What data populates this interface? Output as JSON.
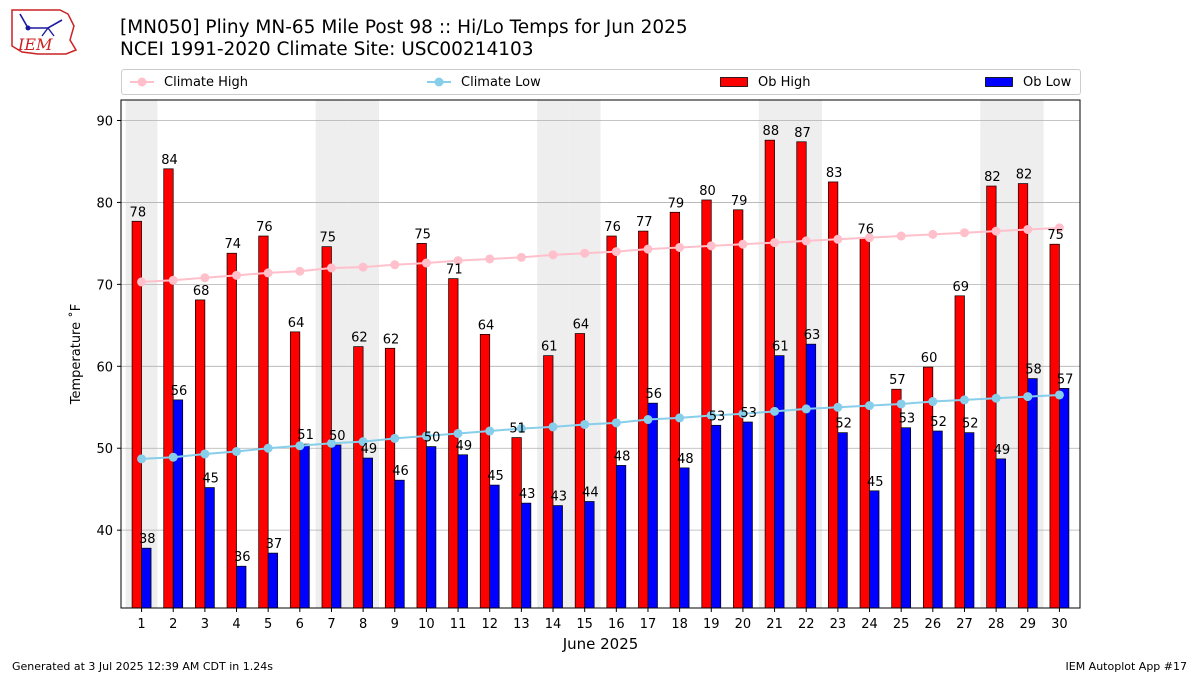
{
  "header": {
    "logo_text": "IEM",
    "title_line1": "[MN050] Pliny MN-65 Mile Post 98 :: Hi/Lo Temps for Jun 2025",
    "title_line2": "NCEI 1991-2020 Climate Site: USC00214103"
  },
  "footer": {
    "generated": "Generated at 3 Jul 2025 12:39 AM CDT in 1.24s",
    "app": "IEM Autoplot App #17"
  },
  "colors": {
    "climate_high": "#ffc0cb",
    "climate_low": "#87ceeb",
    "ob_high": "#ff0000",
    "ob_low": "#0000ff",
    "weekend_shade": "#eeeeee",
    "grid": "#b0b0b0",
    "logo": "#cc2222"
  },
  "chart_data": {
    "type": "bar",
    "title": "[MN050] Pliny MN-65 Mile Post 98 :: Hi/Lo Temps for Jun 2025",
    "subtitle": "NCEI 1991-2020 Climate Site: USC00214103",
    "xlabel": "June 2025",
    "ylabel": "Temperature ˚F",
    "ylim": [
      30.5,
      92.5
    ],
    "yticks": [
      40,
      50,
      60,
      70,
      80,
      90
    ],
    "grid": "horizontal",
    "legend_placement": "top",
    "categories": [
      "1",
      "2",
      "3",
      "4",
      "5",
      "6",
      "7",
      "8",
      "9",
      "10",
      "11",
      "12",
      "13",
      "14",
      "15",
      "16",
      "17",
      "18",
      "19",
      "20",
      "21",
      "22",
      "23",
      "24",
      "25",
      "26",
      "27",
      "28",
      "29",
      "30"
    ],
    "shaded_days": [
      1,
      7,
      8,
      14,
      15,
      21,
      22,
      28,
      29
    ],
    "series": [
      {
        "name": "Climate High",
        "kind": "line",
        "values": [
          70.3,
          70.5,
          70.8,
          71.1,
          71.4,
          71.6,
          72.0,
          72.1,
          72.4,
          72.6,
          72.9,
          73.1,
          73.3,
          73.6,
          73.8,
          74.0,
          74.3,
          74.5,
          74.7,
          74.9,
          75.1,
          75.3,
          75.5,
          75.7,
          75.9,
          76.1,
          76.3,
          76.5,
          76.7,
          76.9
        ]
      },
      {
        "name": "Climate Low",
        "kind": "line",
        "values": [
          48.7,
          48.9,
          49.3,
          49.6,
          50.0,
          50.3,
          50.6,
          50.8,
          51.2,
          51.5,
          51.8,
          52.1,
          52.4,
          52.6,
          52.9,
          53.1,
          53.5,
          53.7,
          54.0,
          54.2,
          54.5,
          54.8,
          55.0,
          55.2,
          55.4,
          55.7,
          55.9,
          56.1,
          56.3,
          56.5
        ]
      },
      {
        "name": "Ob High",
        "kind": "bar",
        "values": [
          77.7,
          84.1,
          68.1,
          73.8,
          75.9,
          64.2,
          74.6,
          62.4,
          62.2,
          75.0,
          70.7,
          63.9,
          51.3,
          61.3,
          64.0,
          75.9,
          76.5,
          78.8,
          80.3,
          79.1,
          87.6,
          87.4,
          82.5,
          75.6,
          57.2,
          59.9,
          68.6,
          82.0,
          82.3,
          74.9
        ],
        "labels": [
          "78",
          "84",
          "68",
          "74",
          "76",
          "64",
          "75",
          "62",
          "62",
          "75",
          "71",
          "64",
          "51",
          "61",
          "64",
          "76",
          "77",
          "79",
          "80",
          "79",
          "88",
          "87",
          "83",
          "76",
          "57",
          "60",
          "69",
          "82",
          "82",
          "75"
        ]
      },
      {
        "name": "Ob Low",
        "kind": "bar",
        "values": [
          37.8,
          55.9,
          45.2,
          35.6,
          37.2,
          50.5,
          50.4,
          48.8,
          46.1,
          50.2,
          49.2,
          45.5,
          43.3,
          43.0,
          43.5,
          47.9,
          55.5,
          47.6,
          52.8,
          53.2,
          61.3,
          62.7,
          51.9,
          44.8,
          52.5,
          52.1,
          51.9,
          48.7,
          58.5,
          57.3
        ],
        "labels": [
          "38",
          "56",
          "45",
          "36",
          "37",
          "51",
          "50",
          "49",
          "46",
          "50",
          "49",
          "45",
          "43",
          "43",
          "44",
          "48",
          "56",
          "48",
          "53",
          "53",
          "61",
          "63",
          "52",
          "45",
          "53",
          "52",
          "52",
          "49",
          "58",
          "57"
        ]
      }
    ]
  }
}
